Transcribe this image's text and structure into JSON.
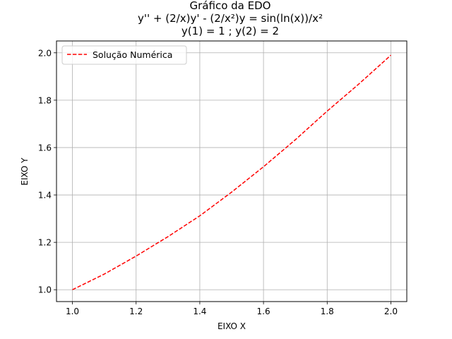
{
  "chart_data": {
    "type": "line",
    "title": [
      "Gráfico da EDO",
      "y'' + (2/x)y' - (2/x²)y = sin(ln(x))/x²",
      "y(1) = 1 ; y(2) = 2"
    ],
    "xlabel": "EIXO X",
    "ylabel": "EIXO Y",
    "xlim": [
      0.95,
      2.05
    ],
    "ylim": [
      0.95,
      2.05
    ],
    "xticks": [
      "1.0",
      "1.2",
      "1.4",
      "1.6",
      "1.8",
      "2.0"
    ],
    "yticks": [
      "1.0",
      "1.2",
      "1.4",
      "1.6",
      "1.8",
      "2.0"
    ],
    "grid": true,
    "legend_position": "top-left",
    "series": [
      {
        "name": "Solução Numérica",
        "color": "#ff0000",
        "linestyle": "dashed",
        "x": [
          1.0,
          1.1,
          1.2,
          1.3,
          1.4,
          1.5,
          1.6,
          1.7,
          1.8,
          1.9,
          2.0
        ],
        "y": [
          1.0,
          1.066,
          1.142,
          1.224,
          1.312,
          1.412,
          1.519,
          1.633,
          1.754,
          1.869,
          1.99
        ]
      }
    ]
  }
}
